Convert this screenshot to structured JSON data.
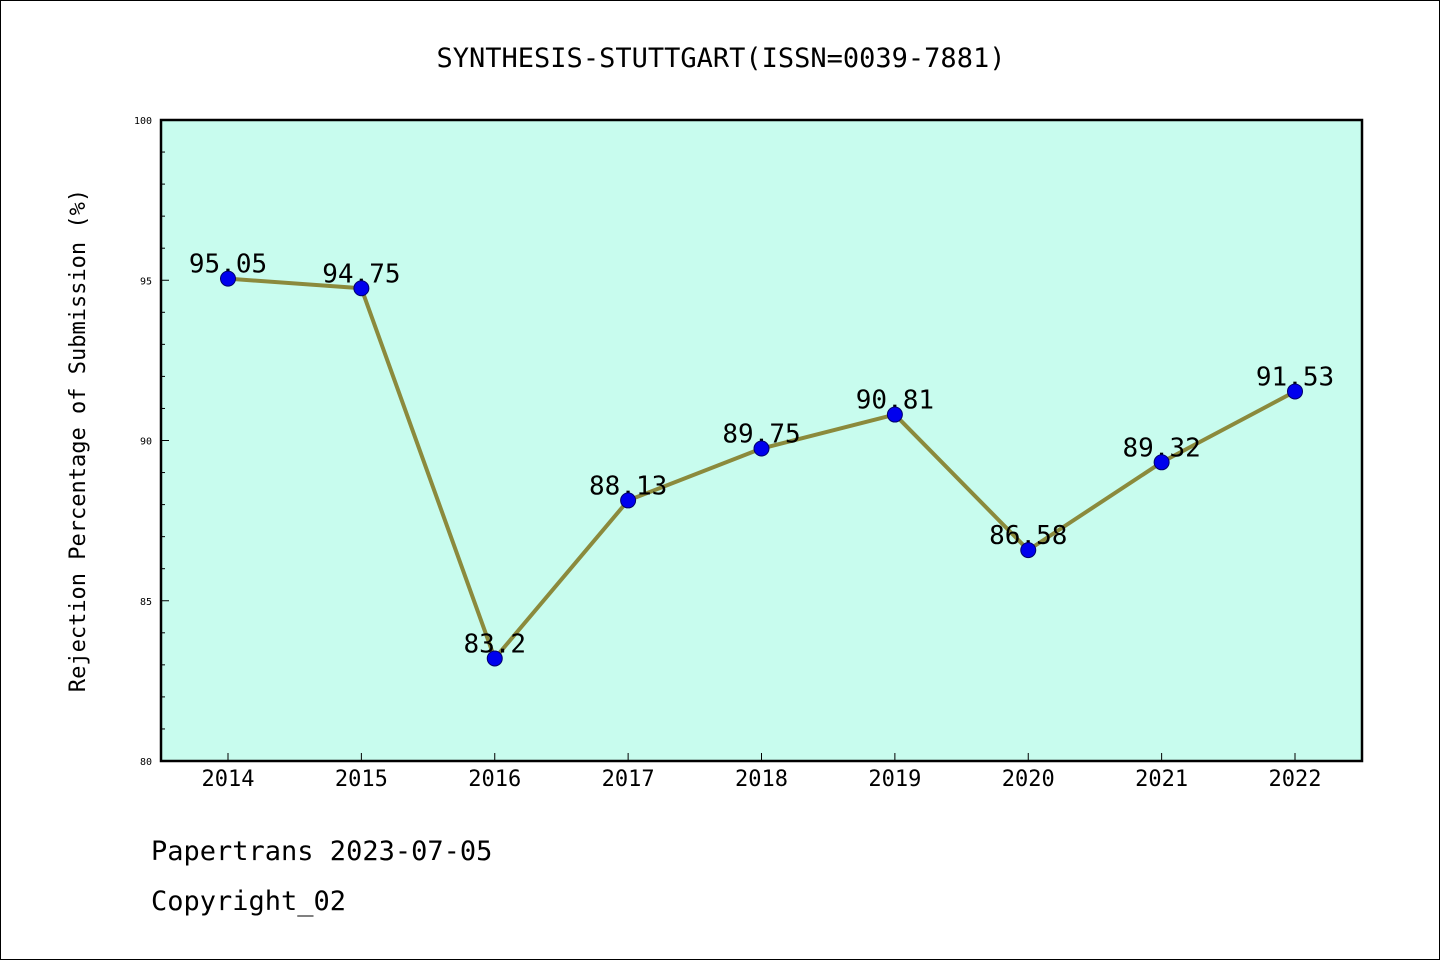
{
  "chart_data": {
    "type": "line",
    "title": "SYNTHESIS-STUTTGART(ISSN=0039-7881)",
    "xlabel": "",
    "ylabel": "Rejection Percentage of Submission (%)",
    "categories": [
      "2014",
      "2015",
      "2016",
      "2017",
      "2018",
      "2019",
      "2020",
      "2021",
      "2022"
    ],
    "series": [
      {
        "values": [
          95.05,
          94.75,
          83.2,
          88.13,
          89.75,
          90.81,
          86.58,
          89.32,
          91.53
        ],
        "data_labels": [
          "95.05",
          "94.75",
          "83.2",
          "88.13",
          "89.75",
          "90.81",
          "86.58",
          "89.32",
          "91.53"
        ]
      }
    ],
    "ylim": [
      80,
      100
    ],
    "yticks": [
      80,
      85,
      90,
      95,
      100
    ],
    "ytick_labels": [
      "80",
      "85",
      "90",
      "95",
      "100"
    ],
    "grid": false,
    "colors": {
      "plot_background": "#c8fcee",
      "line": "#8b8a3c",
      "marker": "#0000ee"
    }
  },
  "footer": {
    "line1": "Papertrans 2023-07-05",
    "line2": "Copyright_02"
  }
}
